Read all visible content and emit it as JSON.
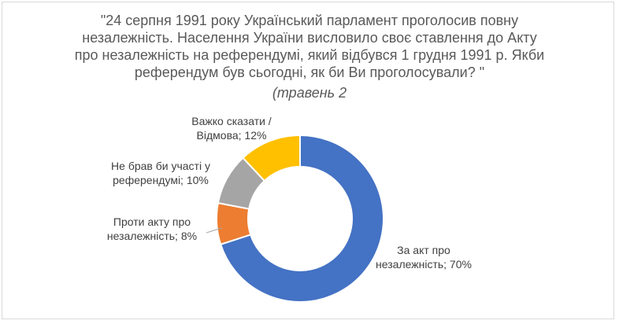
{
  "chart_data": {
    "type": "pie",
    "donut": true,
    "title_lines": [
      "\"24 серпня 1991  року Український парламент проголосив повну",
      "незалежність. Населення України висловило своє ставлення до Акту",
      "про незалежність на референдумі, який відбувся 1 грудня 1991  р. Якби",
      "референдум був сьогодні, як би Ви проголосували? \""
    ],
    "subtitle": "(травень 2",
    "categories": [
      "За акт про незалежність",
      "Проти акту про незалежність",
      "Не брав би участі у референдумі",
      "Важко сказати / Відмова"
    ],
    "values": [
      70,
      8,
      10,
      12
    ],
    "colors": [
      "#4472C4",
      "#ED7D31",
      "#A5A5A5",
      "#FFC000"
    ],
    "data_labels": [
      [
        "За акт про",
        "незалежність; 70%"
      ],
      [
        "Проти акту про",
        "незалежність; 8%"
      ],
      [
        "Не брав би участі у",
        "референдумі; 10%"
      ],
      [
        "Важко сказати /",
        "Відмова; 12%"
      ]
    ]
  }
}
